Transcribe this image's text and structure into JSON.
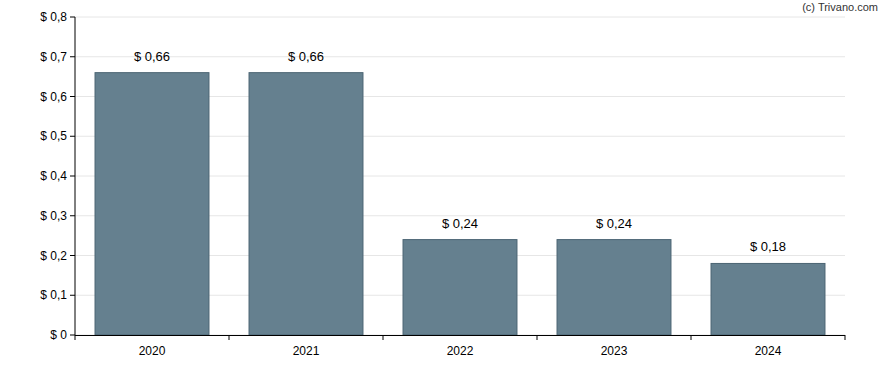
{
  "chart_data": {
    "type": "bar",
    "annotations": [
      "(c) Trivano.com"
    ],
    "categories": [
      "2020",
      "2021",
      "2022",
      "2023",
      "2024"
    ],
    "values": [
      0.66,
      0.66,
      0.24,
      0.24,
      0.18
    ],
    "value_labels": [
      "$ 0,66",
      "$ 0,66",
      "$ 0,24",
      "$ 0,24",
      "$ 0,18"
    ],
    "color": "#65808f",
    "ylim": [
      0,
      0.8
    ],
    "yticks": [
      {
        "value": 0,
        "label": "$ 0"
      },
      {
        "value": 0.1,
        "label": "$ 0,1"
      },
      {
        "value": 0.2,
        "label": "$ 0,2"
      },
      {
        "value": 0.3,
        "label": "$ 0,3"
      },
      {
        "value": 0.4,
        "label": "$ 0,4"
      },
      {
        "value": 0.5,
        "label": "$ 0,5"
      },
      {
        "value": 0.6,
        "label": "$ 0,6"
      },
      {
        "value": 0.7,
        "label": "$ 0,7"
      },
      {
        "value": 0.8,
        "label": "$ 0,8"
      }
    ],
    "grid": true,
    "data_labels": true
  }
}
